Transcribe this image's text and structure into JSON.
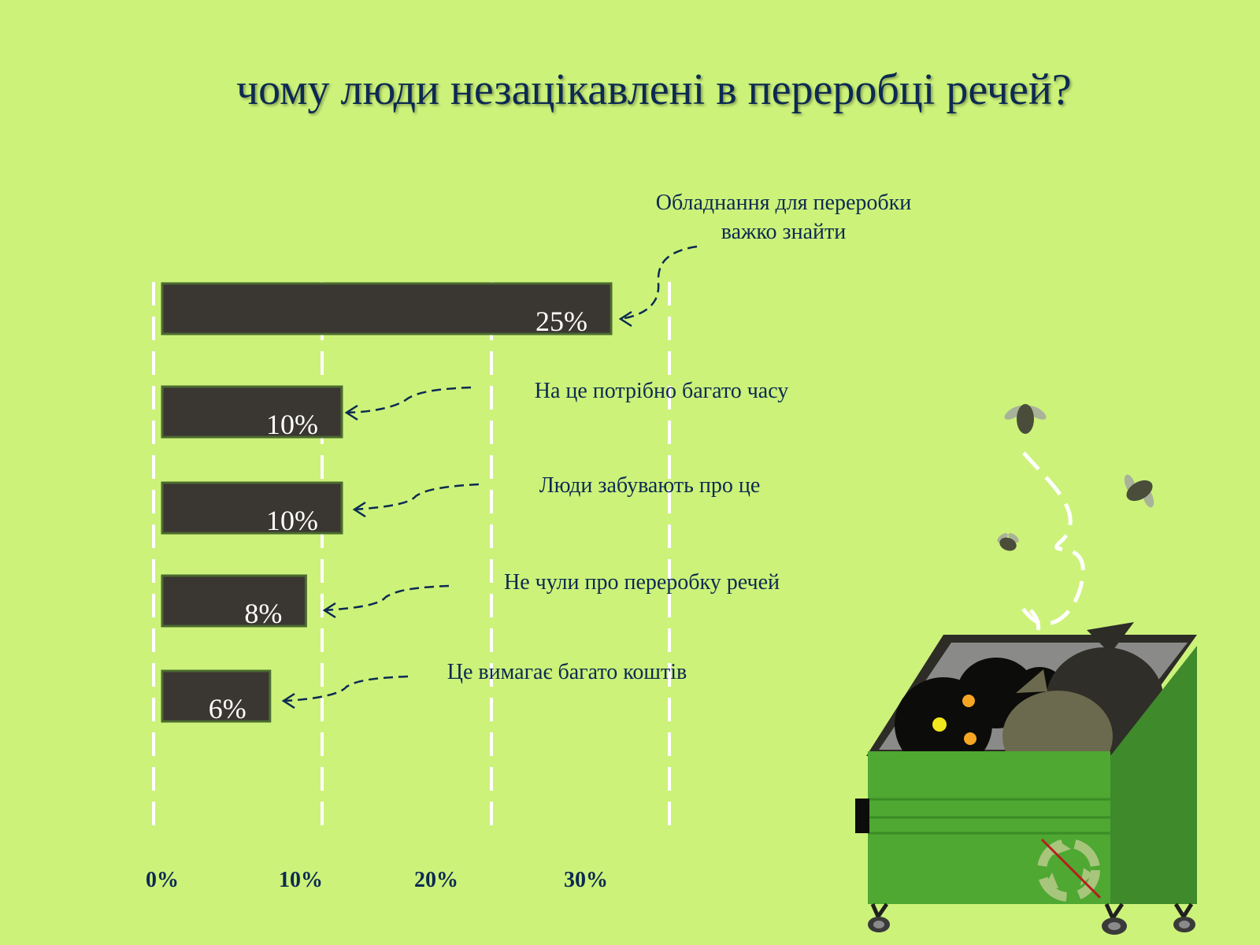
{
  "title": "чому люди незацікавлені в переробці речей?",
  "colors": {
    "background": "#ccf27a",
    "bar": "#3a3632",
    "bar_border": "#4b6a2f",
    "text": "#0c2a52",
    "grid": "#ffffff"
  },
  "chart_data": {
    "type": "bar",
    "orientation": "horizontal",
    "categories": [
      "Обладнання для переробки важко знайти",
      "На це потрібно багато часу",
      "Люди забувають про це",
      "Не чули про переробку речей",
      "Це вимагає багато коштів"
    ],
    "category_lines": [
      [
        "Обладнання для переробки",
        "важко знайти"
      ],
      [
        "На це потрібно багато часу"
      ],
      [
        "Люди забувають про це"
      ],
      [
        "Не чули про переробку речей"
      ],
      [
        "Це вимагає багато коштів"
      ]
    ],
    "values": [
      25,
      10,
      10,
      8,
      6
    ],
    "data_labels": [
      "25%",
      "10%",
      "10%",
      "8%",
      "6%"
    ],
    "xticks": [
      "0%",
      "10%",
      "20%",
      "30%"
    ],
    "xlim": [
      0,
      30
    ],
    "grid": true,
    "grid_style": "dashed",
    "legend": "none",
    "title": "чому люди незацікавлені в переробці речей?"
  },
  "illustration": {
    "icons": [
      "dumpster-icon",
      "trash-bag-icon",
      "fly-icon",
      "recycle-icon"
    ]
  }
}
